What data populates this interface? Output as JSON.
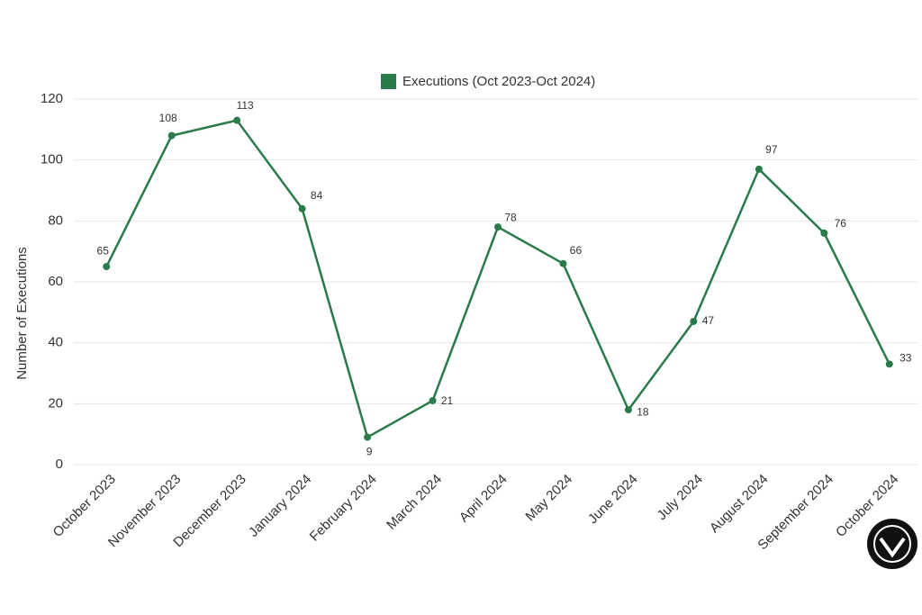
{
  "chart_data": {
    "type": "line",
    "legend_label": "Executions (Oct 2023-Oct 2024)",
    "y_axis_label": "Number of Executions",
    "categories": [
      "October 2023",
      "November 2023",
      "December 2023",
      "January 2024",
      "February 2024",
      "March 2024",
      "April 2024",
      "May 2024",
      "June 2024",
      "July 2024",
      "August 2024",
      "September 2024",
      "October 2024"
    ],
    "series": [
      {
        "name": "Executions (Oct 2023-Oct 2024)",
        "color": "#2a7a4b",
        "values": [
          65,
          108,
          113,
          84,
          9,
          21,
          78,
          66,
          18,
          47,
          97,
          76,
          33
        ]
      }
    ],
    "ylim": [
      0,
      120
    ],
    "yticks": [
      0,
      20,
      40,
      60,
      80,
      100,
      120
    ],
    "grid": true,
    "legend": "top"
  }
}
